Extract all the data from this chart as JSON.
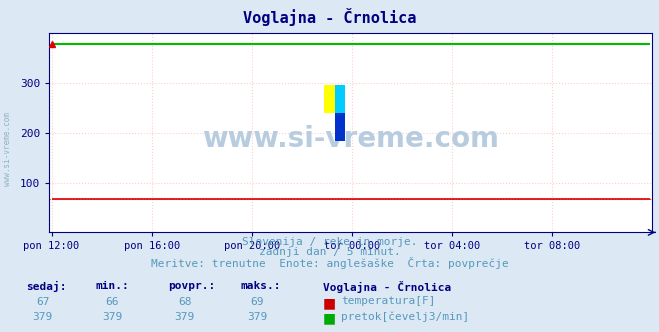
{
  "title": "Voglajna - Črnolica",
  "bg_color": "#dce9f5",
  "plot_bg_color": "#ffffff",
  "grid_color_h": "#ffcccc",
  "grid_color_v": "#ffcccc",
  "title_color": "#000080",
  "axis_color": "#000080",
  "text_color": "#5599bb",
  "ylim": [
    0,
    400
  ],
  "yticks": [
    100,
    200,
    300
  ],
  "n_points": 288,
  "temp_value": 67.0,
  "flow_value": 379.0,
  "temp_color": "#dd0000",
  "flow_color": "#00bb00",
  "x_tick_labels": [
    "pon 12:00",
    "pon 16:00",
    "pon 20:00",
    "tor 00:00",
    "tor 04:00",
    "tor 08:00"
  ],
  "x_tick_positions": [
    0,
    48,
    96,
    144,
    192,
    240
  ],
  "subtitle1": "Slovenija / reke in morje.",
  "subtitle2": "zadnji dan / 5 minut.",
  "subtitle3": "Meritve: trenutne  Enote: anglešaške  Črta: povprečje",
  "legend_title": "Voglajna - Črnolica",
  "legend_items": [
    "temperatura[F]",
    "pretok[čevelj3/min]"
  ],
  "legend_colors": [
    "#cc0000",
    "#00aa00"
  ],
  "table_headers": [
    "sedaj:",
    "min.:",
    "povpr.:",
    "maks.:"
  ],
  "table_row1": [
    "67",
    "66",
    "68",
    "69"
  ],
  "table_row2": [
    "379",
    "379",
    "379",
    "379"
  ],
  "watermark": "www.si-vreme.com",
  "left_watermark": "www.si-vreme.com",
  "logo_colors": [
    "#ffff00",
    "#00aaff",
    "#0000cc"
  ],
  "figsize": [
    6.59,
    3.32
  ],
  "dpi": 100
}
